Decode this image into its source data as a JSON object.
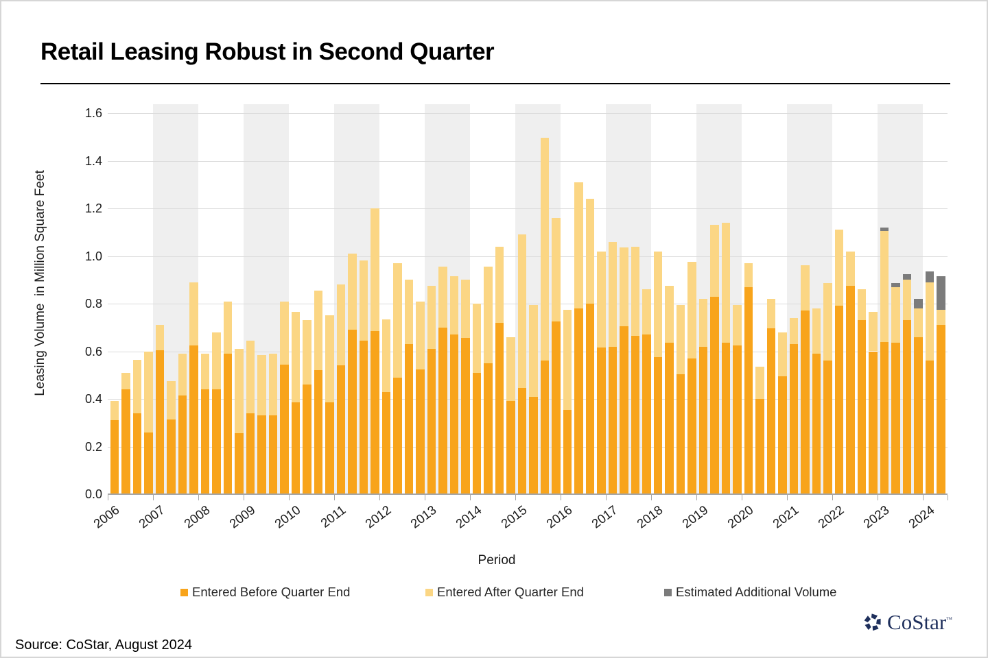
{
  "title": "Retail Leasing Robust in Second Quarter",
  "source": "Source: CoStar, August 2024",
  "logo": {
    "text": "CoStar",
    "tm": "™"
  },
  "colors": {
    "before": "#F8A41B",
    "after": "#FBD684",
    "est": "#7B7B7B",
    "band": "#EFEFEF",
    "grid": "#DBDBDB",
    "axis": "#A6A6A6",
    "logo_navy": "#1E2F5C"
  },
  "legend": [
    {
      "label": "Entered Before Quarter End",
      "color_key": "before"
    },
    {
      "label": "Entered After Quarter End",
      "color_key": "after"
    },
    {
      "label": "Estimated Additional Volume",
      "color_key": "est"
    }
  ],
  "chart_data": {
    "type": "bar",
    "stacked": true,
    "title": "Retail Leasing Robust in Second Quarter",
    "xlabel": "Period",
    "ylabel": "Leasing Volume  in Million Square Feet",
    "ylim": [
      0.0,
      1.6
    ],
    "yticks": [
      "0.0",
      "0.2",
      "0.4",
      "0.6",
      "0.8",
      "1.0",
      "1.2",
      "1.4",
      "1.6"
    ],
    "grid": "horizontal",
    "legend_position": "bottom",
    "shaded_year_bands": [
      2007,
      2009,
      2011,
      2013,
      2015,
      2017,
      2019,
      2021,
      2023
    ],
    "series_names": [
      "Entered Before Quarter End",
      "Entered After Quarter End",
      "Estimated Additional Volume"
    ],
    "years": [
      "2006",
      "2007",
      "2008",
      "2009",
      "2010",
      "2011",
      "2012",
      "2013",
      "2014",
      "2015",
      "2016",
      "2017",
      "2018",
      "2019",
      "2020",
      "2021",
      "2022",
      "2023",
      "2024"
    ],
    "note": "values are cumulative stack tops in million sq ft: before = top of orange, after = top of light segment, est = top of gray segment",
    "quarters": [
      {
        "period": "2006 Q1",
        "before": 0.31,
        "after": 0.39,
        "est": 0.39
      },
      {
        "period": "2006 Q2",
        "before": 0.44,
        "after": 0.51,
        "est": 0.51
      },
      {
        "period": "2006 Q3",
        "before": 0.34,
        "after": 0.565,
        "est": 0.565
      },
      {
        "period": "2006 Q4",
        "before": 0.26,
        "after": 0.6,
        "est": 0.6
      },
      {
        "period": "2007 Q1",
        "before": 0.605,
        "after": 0.71,
        "est": 0.71
      },
      {
        "period": "2007 Q2",
        "before": 0.315,
        "after": 0.475,
        "est": 0.475
      },
      {
        "period": "2007 Q3",
        "before": 0.415,
        "after": 0.59,
        "est": 0.59
      },
      {
        "period": "2007 Q4",
        "before": 0.625,
        "after": 0.89,
        "est": 0.89
      },
      {
        "period": "2008 Q1",
        "before": 0.44,
        "after": 0.59,
        "est": 0.59
      },
      {
        "period": "2008 Q2",
        "before": 0.44,
        "after": 0.68,
        "est": 0.68
      },
      {
        "period": "2008 Q3",
        "before": 0.59,
        "after": 0.81,
        "est": 0.81
      },
      {
        "period": "2008 Q4",
        "before": 0.255,
        "after": 0.61,
        "est": 0.61
      },
      {
        "period": "2009 Q1",
        "before": 0.34,
        "after": 0.645,
        "est": 0.645
      },
      {
        "period": "2009 Q2",
        "before": 0.33,
        "after": 0.585,
        "est": 0.585
      },
      {
        "period": "2009 Q3",
        "before": 0.33,
        "after": 0.59,
        "est": 0.59
      },
      {
        "period": "2009 Q4",
        "before": 0.545,
        "after": 0.81,
        "est": 0.81
      },
      {
        "period": "2010 Q1",
        "before": 0.385,
        "after": 0.765,
        "est": 0.765
      },
      {
        "period": "2010 Q2",
        "before": 0.46,
        "after": 0.73,
        "est": 0.73
      },
      {
        "period": "2010 Q3",
        "before": 0.52,
        "after": 0.855,
        "est": 0.855
      },
      {
        "period": "2010 Q4",
        "before": 0.385,
        "after": 0.75,
        "est": 0.75
      },
      {
        "period": "2011 Q1",
        "before": 0.54,
        "after": 0.88,
        "est": 0.88
      },
      {
        "period": "2011 Q2",
        "before": 0.69,
        "after": 1.01,
        "est": 1.01
      },
      {
        "period": "2011 Q3",
        "before": 0.645,
        "after": 0.98,
        "est": 0.98
      },
      {
        "period": "2011 Q4",
        "before": 0.685,
        "after": 1.2,
        "est": 1.2
      },
      {
        "period": "2012 Q1",
        "before": 0.43,
        "after": 0.735,
        "est": 0.735
      },
      {
        "period": "2012 Q2",
        "before": 0.49,
        "after": 0.97,
        "est": 0.97
      },
      {
        "period": "2012 Q3",
        "before": 0.63,
        "after": 0.9,
        "est": 0.9
      },
      {
        "period": "2012 Q4",
        "before": 0.525,
        "after": 0.81,
        "est": 0.81
      },
      {
        "period": "2013 Q1",
        "before": 0.61,
        "after": 0.875,
        "est": 0.875
      },
      {
        "period": "2013 Q2",
        "before": 0.7,
        "after": 0.955,
        "est": 0.955
      },
      {
        "period": "2013 Q3",
        "before": 0.67,
        "after": 0.915,
        "est": 0.915
      },
      {
        "period": "2013 Q4",
        "before": 0.655,
        "after": 0.9,
        "est": 0.9
      },
      {
        "period": "2014 Q1",
        "before": 0.51,
        "after": 0.8,
        "est": 0.8
      },
      {
        "period": "2014 Q2",
        "before": 0.55,
        "after": 0.955,
        "est": 0.955
      },
      {
        "period": "2014 Q3",
        "before": 0.72,
        "after": 1.04,
        "est": 1.04
      },
      {
        "period": "2014 Q4",
        "before": 0.39,
        "after": 0.66,
        "est": 0.66
      },
      {
        "period": "2015 Q1",
        "before": 0.445,
        "after": 1.09,
        "est": 1.09
      },
      {
        "period": "2015 Q2",
        "before": 0.41,
        "after": 0.795,
        "est": 0.795
      },
      {
        "period": "2015 Q3",
        "before": 0.56,
        "after": 1.495,
        "est": 1.495
      },
      {
        "period": "2015 Q4",
        "before": 0.725,
        "after": 1.16,
        "est": 1.16
      },
      {
        "period": "2016 Q1",
        "before": 0.355,
        "after": 0.775,
        "est": 0.775
      },
      {
        "period": "2016 Q2",
        "before": 0.78,
        "after": 1.31,
        "est": 1.31
      },
      {
        "period": "2016 Q3",
        "before": 0.8,
        "after": 1.24,
        "est": 1.24
      },
      {
        "period": "2016 Q4",
        "before": 0.615,
        "after": 1.02,
        "est": 1.02
      },
      {
        "period": "2017 Q1",
        "before": 0.62,
        "after": 1.06,
        "est": 1.06
      },
      {
        "period": "2017 Q2",
        "before": 0.705,
        "after": 1.035,
        "est": 1.035
      },
      {
        "period": "2017 Q3",
        "before": 0.665,
        "after": 1.04,
        "est": 1.04
      },
      {
        "period": "2017 Q4",
        "before": 0.67,
        "after": 0.86,
        "est": 0.86
      },
      {
        "period": "2018 Q1",
        "before": 0.575,
        "after": 1.02,
        "est": 1.02
      },
      {
        "period": "2018 Q2",
        "before": 0.635,
        "after": 0.875,
        "est": 0.875
      },
      {
        "period": "2018 Q3",
        "before": 0.505,
        "after": 0.795,
        "est": 0.795
      },
      {
        "period": "2018 Q4",
        "before": 0.57,
        "after": 0.975,
        "est": 0.975
      },
      {
        "period": "2019 Q1",
        "before": 0.62,
        "after": 0.82,
        "est": 0.82
      },
      {
        "period": "2019 Q2",
        "before": 0.83,
        "after": 1.13,
        "est": 1.13
      },
      {
        "period": "2019 Q3",
        "before": 0.635,
        "after": 1.14,
        "est": 1.14
      },
      {
        "period": "2019 Q4",
        "before": 0.625,
        "after": 0.795,
        "est": 0.795
      },
      {
        "period": "2020 Q1",
        "before": 0.87,
        "after": 0.97,
        "est": 0.97
      },
      {
        "period": "2020 Q2",
        "before": 0.4,
        "after": 0.535,
        "est": 0.535
      },
      {
        "period": "2020 Q3",
        "before": 0.695,
        "after": 0.82,
        "est": 0.82
      },
      {
        "period": "2020 Q4",
        "before": 0.495,
        "after": 0.68,
        "est": 0.68
      },
      {
        "period": "2021 Q1",
        "before": 0.63,
        "after": 0.74,
        "est": 0.74
      },
      {
        "period": "2021 Q2",
        "before": 0.77,
        "after": 0.96,
        "est": 0.96
      },
      {
        "period": "2021 Q3",
        "before": 0.59,
        "after": 0.78,
        "est": 0.78
      },
      {
        "period": "2021 Q4",
        "before": 0.56,
        "after": 0.885,
        "est": 0.885
      },
      {
        "period": "2022 Q1",
        "before": 0.79,
        "after": 1.11,
        "est": 1.11
      },
      {
        "period": "2022 Q2",
        "before": 0.875,
        "after": 1.02,
        "est": 1.02
      },
      {
        "period": "2022 Q3",
        "before": 0.73,
        "after": 0.86,
        "est": 0.86
      },
      {
        "period": "2022 Q4",
        "before": 0.6,
        "after": 0.765,
        "est": 0.765
      },
      {
        "period": "2023 Q1",
        "before": 0.64,
        "after": 1.105,
        "est": 1.12
      },
      {
        "period": "2023 Q2",
        "before": 0.635,
        "after": 0.87,
        "est": 0.885
      },
      {
        "period": "2023 Q3",
        "before": 0.73,
        "after": 0.9,
        "est": 0.925
      },
      {
        "period": "2023 Q4",
        "before": 0.66,
        "after": 0.78,
        "est": 0.82
      },
      {
        "period": "2024 Q1",
        "before": 0.56,
        "after": 0.89,
        "est": 0.935
      },
      {
        "period": "2024 Q2",
        "before": 0.71,
        "after": 0.775,
        "est": 0.915
      }
    ]
  }
}
